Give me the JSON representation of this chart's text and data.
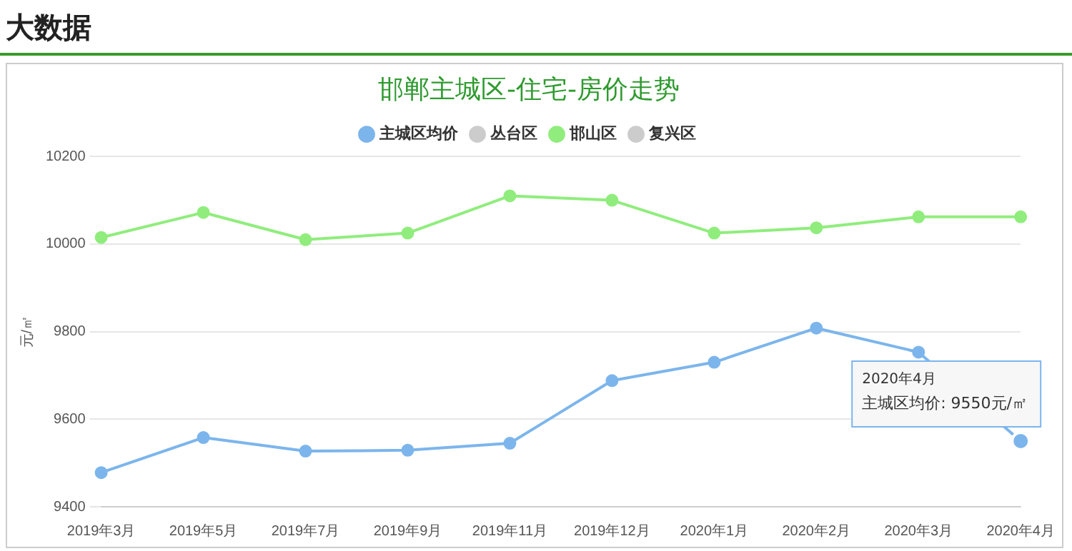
{
  "chart_data": {
    "type": "line",
    "title": "邯郸主城区-住宅-房价走势",
    "ylabel": "元/㎡",
    "categories": [
      "2019年3月",
      "2019年5月",
      "2019年7月",
      "2019年9月",
      "2019年11月",
      "2019年12月",
      "2020年1月",
      "2020年2月",
      "2020年3月",
      "2020年4月"
    ],
    "series": [
      {
        "name": "主城区均价",
        "color": "#7cb5ec",
        "values": [
          9478,
          9558,
          9527,
          9529,
          9545,
          9688,
          9730,
          9808,
          9753,
          9550
        ]
      },
      {
        "name": "丛台区",
        "color": "#cccccc",
        "values": [
          null,
          null,
          null,
          null,
          null,
          null,
          null,
          null,
          null,
          null
        ]
      },
      {
        "name": "邯山区",
        "color": "#90ed7d",
        "values": [
          10015,
          10072,
          10010,
          10025,
          10110,
          10100,
          10025,
          10037,
          10062,
          10062
        ]
      },
      {
        "name": "复兴区",
        "color": "#cccccc",
        "values": [
          null,
          null,
          null,
          null,
          null,
          null,
          null,
          null,
          null,
          null
        ]
      }
    ],
    "ylim": [
      9400,
      10200
    ],
    "yticks": [
      9400,
      9600,
      9800,
      10000,
      10200
    ],
    "grid": "y",
    "legend": "top",
    "marker": "circle",
    "line_style": "solid",
    "annotations": [
      "大数据",
      "2020年4月",
      {
        "text": "主城区均价: 9550元/㎡",
        "x": "2020年4月",
        "y": 9550
      }
    ]
  }
}
